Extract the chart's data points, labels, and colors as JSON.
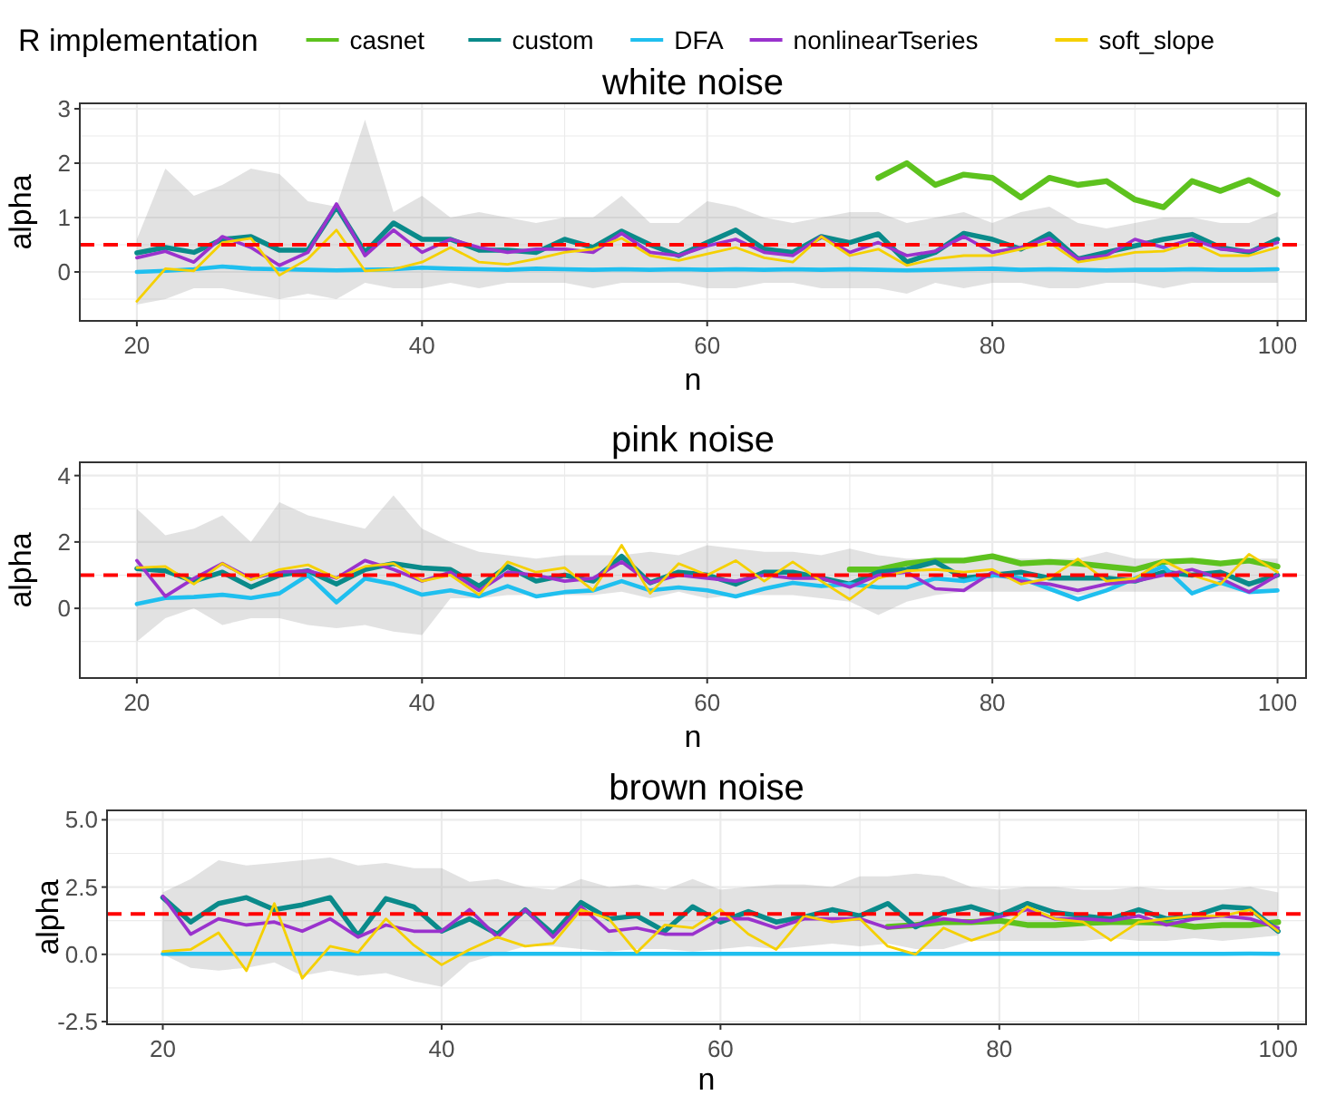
{
  "chart_data": [
    {
      "type": "line",
      "title": "white noise",
      "xlabel": "n",
      "ylabel": "alpha",
      "legend_title": "R implementation",
      "legend": "top",
      "grid": true,
      "x": [
        20,
        22,
        24,
        26,
        28,
        30,
        32,
        34,
        36,
        38,
        40,
        42,
        44,
        46,
        48,
        50,
        52,
        54,
        56,
        58,
        60,
        62,
        64,
        66,
        68,
        70,
        72,
        74,
        76,
        78,
        80,
        82,
        84,
        86,
        88,
        90,
        92,
        94,
        96,
        98,
        100
      ],
      "xlim": [
        16,
        102
      ],
      "ylim": [
        -0.9,
        3.1
      ],
      "xticks": [
        20,
        {
          "value": 30,
          "label": null
        },
        40,
        {
          "value": 50,
          "label": null
        },
        60,
        {
          "value": 70,
          "label": null
        },
        80,
        {
          "value": 90,
          "label": null
        },
        100
      ],
      "yticks": [
        {
          "value": -0.5,
          "label": null
        },
        0,
        {
          "value": 0.5,
          "label": null
        },
        1,
        {
          "value": 1.5,
          "label": null
        },
        2,
        {
          "value": 2.5,
          "label": null
        },
        3
      ],
      "ref_lines": [
        {
          "axis": "y",
          "value": 0.5,
          "color": "#ff0000",
          "line_style": "dashed"
        }
      ],
      "series": [
        {
          "name": "casnet",
          "color": "#5dc21e",
          "values": [
            null,
            null,
            null,
            null,
            null,
            null,
            null,
            null,
            null,
            null,
            null,
            null,
            null,
            null,
            null,
            null,
            null,
            null,
            null,
            null,
            null,
            null,
            null,
            null,
            null,
            null,
            1.73,
            2.0,
            1.6,
            1.79,
            1.73,
            1.37,
            1.73,
            1.6,
            1.67,
            1.33,
            1.19,
            1.67,
            1.49,
            1.69,
            1.43
          ]
        },
        {
          "name": "custom",
          "color": "#0a8a8a",
          "values": [
            0.35,
            0.45,
            0.36,
            0.6,
            0.65,
            0.4,
            0.4,
            1.2,
            0.36,
            0.9,
            0.6,
            0.6,
            0.4,
            0.4,
            0.36,
            0.6,
            0.45,
            0.75,
            0.5,
            0.3,
            0.54,
            0.77,
            0.42,
            0.36,
            0.65,
            0.54,
            0.7,
            0.18,
            0.36,
            0.71,
            0.6,
            0.42,
            0.7,
            0.24,
            0.36,
            0.48,
            0.6,
            0.69,
            0.45,
            0.36,
            0.6
          ],
          "lower": [
            -0.6,
            -0.5,
            -0.3,
            -0.3,
            -0.4,
            -0.5,
            -0.4,
            -0.5,
            -0.2,
            -0.3,
            -0.3,
            -0.2,
            -0.3,
            -0.2,
            -0.2,
            -0.2,
            -0.3,
            -0.2,
            -0.2,
            -0.2,
            -0.3,
            -0.3,
            -0.2,
            -0.2,
            -0.3,
            -0.3,
            -0.3,
            -0.4,
            -0.2,
            -0.3,
            -0.2,
            -0.2,
            -0.3,
            -0.3,
            -0.2,
            -0.2,
            -0.3,
            -0.2,
            -0.2,
            -0.2,
            -0.2
          ],
          "upper": [
            0.6,
            1.9,
            1.4,
            1.6,
            1.9,
            1.8,
            1.3,
            1.2,
            2.8,
            1.1,
            1.4,
            1.0,
            1.1,
            1.0,
            0.9,
            1.0,
            1.0,
            1.4,
            0.9,
            0.9,
            1.3,
            1.2,
            1.0,
            0.9,
            1.0,
            1.1,
            1.1,
            0.9,
            1.0,
            1.1,
            0.9,
            1.1,
            1.2,
            0.9,
            0.8,
            0.9,
            1.0,
            1.0,
            0.9,
            0.9,
            1.1
          ]
        },
        {
          "name": "DFA",
          "color": "#1fbfef",
          "values": [
            0.0,
            0.02,
            0.05,
            0.1,
            0.06,
            0.05,
            0.04,
            0.03,
            0.04,
            0.05,
            0.08,
            0.06,
            0.05,
            0.04,
            0.06,
            0.05,
            0.04,
            0.05,
            0.04,
            0.05,
            0.04,
            0.05,
            0.04,
            0.05,
            0.04,
            0.05,
            0.04,
            0.03,
            0.04,
            0.05,
            0.06,
            0.04,
            0.05,
            0.04,
            0.03,
            0.04,
            0.04,
            0.05,
            0.04,
            0.04,
            0.05
          ]
        },
        {
          "name": "nonlinearTseries",
          "color": "#9a32cd",
          "values": [
            0.26,
            0.38,
            0.18,
            0.65,
            0.45,
            0.12,
            0.36,
            1.25,
            0.3,
            0.77,
            0.36,
            0.6,
            0.45,
            0.36,
            0.42,
            0.42,
            0.36,
            0.71,
            0.36,
            0.3,
            0.48,
            0.6,
            0.36,
            0.3,
            0.65,
            0.36,
            0.54,
            0.3,
            0.38,
            0.65,
            0.36,
            0.45,
            0.62,
            0.24,
            0.3,
            0.6,
            0.45,
            0.6,
            0.42,
            0.38,
            0.54
          ]
        },
        {
          "name": "soft_slope",
          "color": "#f5d000",
          "values": [
            -0.54,
            0.06,
            0.02,
            0.54,
            0.62,
            -0.06,
            0.24,
            0.77,
            0.02,
            0.05,
            0.18,
            0.45,
            0.18,
            0.14,
            0.24,
            0.36,
            0.42,
            0.62,
            0.3,
            0.21,
            0.33,
            0.45,
            0.26,
            0.18,
            0.65,
            0.3,
            0.42,
            0.12,
            0.24,
            0.3,
            0.3,
            0.42,
            0.54,
            0.18,
            0.26,
            0.36,
            0.38,
            0.54,
            0.3,
            0.3,
            0.45
          ]
        }
      ]
    },
    {
      "type": "line",
      "title": "pink noise",
      "xlabel": "n",
      "ylabel": "alpha",
      "grid": true,
      "x": [
        20,
        22,
        24,
        26,
        28,
        30,
        32,
        34,
        36,
        38,
        40,
        42,
        44,
        46,
        48,
        50,
        52,
        54,
        56,
        58,
        60,
        62,
        64,
        66,
        68,
        70,
        72,
        74,
        76,
        78,
        80,
        82,
        84,
        86,
        88,
        90,
        92,
        94,
        96,
        98,
        100
      ],
      "xlim": [
        16,
        102
      ],
      "ylim": [
        -2.1,
        4.4
      ],
      "xticks": [
        20,
        {
          "value": 30,
          "label": null
        },
        40,
        {
          "value": 50,
          "label": null
        },
        60,
        {
          "value": 70,
          "label": null
        },
        80,
        {
          "value": 90,
          "label": null
        },
        100
      ],
      "yticks": [
        {
          "value": -1,
          "label": null
        },
        0,
        {
          "value": 1,
          "label": null
        },
        2,
        {
          "value": 3,
          "label": null
        },
        4
      ],
      "ref_lines": [
        {
          "axis": "y",
          "value": 1,
          "color": "#ff0000",
          "line_style": "dashed"
        }
      ],
      "series": [
        {
          "color": "#5dc21e",
          "values": [
            null,
            null,
            null,
            null,
            null,
            null,
            null,
            null,
            null,
            null,
            null,
            null,
            null,
            null,
            null,
            null,
            null,
            null,
            null,
            null,
            null,
            null,
            null,
            null,
            null,
            1.17,
            1.17,
            1.35,
            1.44,
            1.44,
            1.57,
            1.35,
            1.4,
            1.35,
            1.26,
            1.17,
            1.4,
            1.44,
            1.35,
            1.44,
            1.26
          ]
        },
        {
          "color": "#0a8a8a",
          "values": [
            1.2,
            1.13,
            0.82,
            1.09,
            0.64,
            1.0,
            1.13,
            0.73,
            1.17,
            1.35,
            1.22,
            1.17,
            0.67,
            1.26,
            0.82,
            1.0,
            0.82,
            1.57,
            0.77,
            1.09,
            1.0,
            0.73,
            1.09,
            1.09,
            0.91,
            0.73,
            1.09,
            1.17,
            1.4,
            0.91,
            1.0,
            1.09,
            0.91,
            0.91,
            0.91,
            0.82,
            1.09,
            1.0,
            1.09,
            0.73,
            1.0
          ],
          "lower": [
            -1.0,
            -0.3,
            0.0,
            -0.5,
            -0.3,
            -0.3,
            -0.5,
            -0.6,
            -0.5,
            -0.7,
            -0.8,
            0.3,
            0.3,
            0.4,
            0.4,
            0.4,
            0.4,
            0.5,
            0.3,
            0.5,
            0.3,
            0.4,
            0.4,
            0.4,
            0.3,
            0.2,
            -0.2,
            0.2,
            0.4,
            0.5,
            0.5,
            0.5,
            0.5,
            0.4,
            0.5,
            0.5,
            0.5,
            0.5,
            0.5,
            0.5,
            0.5
          ],
          "upper": [
            3.0,
            2.2,
            2.4,
            2.8,
            2.0,
            3.2,
            2.8,
            2.6,
            2.4,
            3.4,
            2.4,
            2.0,
            1.7,
            1.6,
            1.5,
            1.6,
            1.6,
            1.6,
            1.7,
            1.6,
            1.9,
            1.8,
            1.7,
            1.7,
            1.6,
            1.8,
            1.6,
            1.5,
            1.5,
            1.4,
            1.6,
            1.5,
            1.5,
            1.5,
            1.7,
            1.5,
            1.5,
            1.4,
            1.4,
            1.5,
            1.5
          ]
        },
        {
          "color": "#1fbfef",
          "values": [
            0.13,
            0.31,
            0.34,
            0.41,
            0.31,
            0.45,
            1.0,
            0.18,
            0.9,
            0.73,
            0.41,
            0.54,
            0.36,
            0.67,
            0.36,
            0.49,
            0.54,
            0.82,
            0.54,
            0.63,
            0.54,
            0.36,
            0.59,
            0.77,
            0.67,
            0.73,
            0.63,
            0.63,
            0.9,
            0.82,
            1.0,
            0.91,
            0.59,
            0.27,
            0.54,
            0.9,
            1.26,
            0.45,
            0.77,
            0.49,
            0.54
          ]
        },
        {
          "color": "#9a32cd",
          "values": [
            1.44,
            0.36,
            0.9,
            1.35,
            0.9,
            1.09,
            1.13,
            0.91,
            1.44,
            1.17,
            0.82,
            1.09,
            0.54,
            1.09,
            1.0,
            0.82,
            0.91,
            1.4,
            0.77,
            1.0,
            0.91,
            0.82,
            1.0,
            0.91,
            0.91,
            0.64,
            1.0,
            1.09,
            0.59,
            0.54,
            1.09,
            0.82,
            0.73,
            0.54,
            0.73,
            0.82,
            1.0,
            1.17,
            0.9,
            0.49,
            1.0
          ]
        },
        {
          "color": "#f5d000",
          "values": [
            1.22,
            1.26,
            0.73,
            1.35,
            0.86,
            1.17,
            1.31,
            0.91,
            1.26,
            1.35,
            0.82,
            1.0,
            0.41,
            1.4,
            1.09,
            1.22,
            0.54,
            1.9,
            0.45,
            1.35,
            1.0,
            1.44,
            0.82,
            1.4,
            0.82,
            0.27,
            0.91,
            1.13,
            1.17,
            1.09,
            1.17,
            0.73,
            0.91,
            1.49,
            0.82,
            0.9,
            1.44,
            1.0,
            0.73,
            1.63,
            1.09
          ]
        }
      ]
    },
    {
      "type": "line",
      "title": "brown noise",
      "xlabel": "n",
      "ylabel": "alpha",
      "grid": true,
      "x": [
        20,
        22,
        24,
        26,
        28,
        30,
        32,
        34,
        36,
        38,
        40,
        42,
        44,
        46,
        48,
        50,
        52,
        54,
        56,
        58,
        60,
        62,
        64,
        66,
        68,
        70,
        72,
        74,
        76,
        78,
        80,
        82,
        84,
        86,
        88,
        90,
        92,
        94,
        96,
        98,
        100
      ],
      "xlim": [
        16,
        102
      ],
      "ylim": [
        -2.6,
        5.35
      ],
      "xticks": [
        20,
        {
          "value": 30,
          "label": null
        },
        40,
        {
          "value": 50,
          "label": null
        },
        60,
        {
          "value": 70,
          "label": null
        },
        80,
        {
          "value": 90,
          "label": null
        },
        100
      ],
      "yticks": [
        -2.5,
        {
          "value": -1.25,
          "label": null
        },
        {
          "value": 0,
          "label": "0.0"
        },
        {
          "value": 1.25,
          "label": null
        },
        2.5,
        {
          "value": 3.75,
          "label": null
        },
        {
          "value": 5,
          "label": "5.0"
        }
      ],
      "ref_lines": [
        {
          "axis": "y",
          "value": 1.5,
          "color": "#ff0000",
          "line_style": "dashed"
        }
      ],
      "series": [
        {
          "color": "#5dc21e",
          "values": [
            null,
            null,
            null,
            null,
            null,
            null,
            null,
            null,
            null,
            null,
            null,
            null,
            null,
            null,
            null,
            null,
            null,
            null,
            null,
            null,
            null,
            null,
            null,
            null,
            null,
            null,
            1.02,
            1.09,
            1.2,
            1.2,
            1.25,
            1.09,
            1.09,
            1.16,
            1.2,
            1.2,
            1.16,
            1.02,
            1.09,
            1.09,
            1.2
          ]
        },
        {
          "color": "#0a8a8a",
          "values": [
            2.11,
            1.2,
            1.89,
            2.11,
            1.66,
            1.84,
            2.11,
            0.7,
            2.07,
            1.77,
            0.86,
            1.32,
            0.75,
            1.66,
            0.75,
            1.93,
            1.32,
            1.43,
            0.86,
            1.77,
            1.2,
            1.59,
            1.2,
            1.39,
            1.66,
            1.43,
            1.89,
            1.02,
            1.55,
            1.77,
            1.43,
            1.89,
            1.55,
            1.43,
            1.32,
            1.66,
            1.32,
            1.43,
            1.77,
            1.7,
            0.86
          ],
          "lower": [
            0.0,
            -0.5,
            -0.6,
            -0.5,
            -0.3,
            -0.8,
            -0.6,
            -0.8,
            -0.7,
            -1.0,
            -1.2,
            -0.3,
            0.0,
            0.3,
            0.3,
            0.2,
            0.1,
            0.2,
            0.2,
            0.1,
            0.2,
            0.3,
            0.2,
            0.3,
            0.4,
            0.3,
            0.4,
            0.2,
            0.2,
            0.5,
            0.5,
            0.5,
            0.5,
            0.5,
            0.6,
            0.5,
            0.5,
            0.6,
            0.5,
            0.6,
            0.7
          ],
          "upper": [
            2.3,
            2.8,
            3.5,
            3.3,
            3.4,
            3.5,
            3.6,
            3.3,
            3.4,
            3.2,
            3.2,
            2.7,
            2.8,
            2.5,
            2.4,
            2.8,
            2.5,
            2.6,
            2.4,
            2.8,
            2.4,
            2.5,
            2.6,
            2.6,
            2.5,
            2.9,
            2.9,
            3.0,
            2.9,
            2.5,
            2.4,
            2.5,
            2.5,
            2.4,
            2.4,
            2.5,
            2.4,
            2.4,
            2.4,
            2.5,
            2.3
          ]
        },
        {
          "color": "#1fbfef",
          "values": [
            0.02,
            0.02,
            0.02,
            0.02,
            0.02,
            0.02,
            0.02,
            0.02,
            0.02,
            0.02,
            0.02,
            0.02,
            0.02,
            0.02,
            0.02,
            0.02,
            0.02,
            0.02,
            0.02,
            0.02,
            0.02,
            0.02,
            0.02,
            0.02,
            0.02,
            0.02,
            0.02,
            0.02,
            0.02,
            0.02,
            0.02,
            0.02,
            0.02,
            0.02,
            0.02,
            0.02,
            0.02,
            0.02,
            0.02,
            0.03,
            0.02
          ]
        },
        {
          "color": "#9a32cd",
          "values": [
            2.16,
            0.75,
            1.32,
            1.09,
            1.2,
            0.86,
            1.32,
            0.64,
            1.09,
            0.86,
            0.86,
            1.66,
            0.64,
            1.66,
            0.64,
            1.77,
            0.86,
            0.98,
            0.75,
            0.75,
            1.32,
            1.32,
            0.98,
            1.32,
            1.32,
            1.32,
            0.98,
            1.09,
            1.32,
            1.2,
            1.39,
            1.66,
            1.32,
            1.32,
            1.25,
            1.43,
            1.09,
            1.32,
            1.43,
            1.32,
            0.98
          ]
        },
        {
          "color": "#f5d000",
          "values": [
            0.11,
            0.18,
            0.8,
            -0.61,
            1.89,
            -0.89,
            0.3,
            0.07,
            1.32,
            0.34,
            -0.39,
            0.18,
            0.64,
            0.3,
            0.41,
            1.66,
            1.32,
            0.07,
            1.09,
            0.98,
            1.66,
            0.75,
            0.18,
            1.43,
            1.2,
            1.32,
            0.3,
            0.0,
            0.98,
            0.52,
            0.86,
            1.77,
            1.32,
            1.2,
            0.52,
            1.2,
            1.32,
            1.43,
            1.43,
            1.66,
            0.86
          ]
        }
      ]
    }
  ]
}
